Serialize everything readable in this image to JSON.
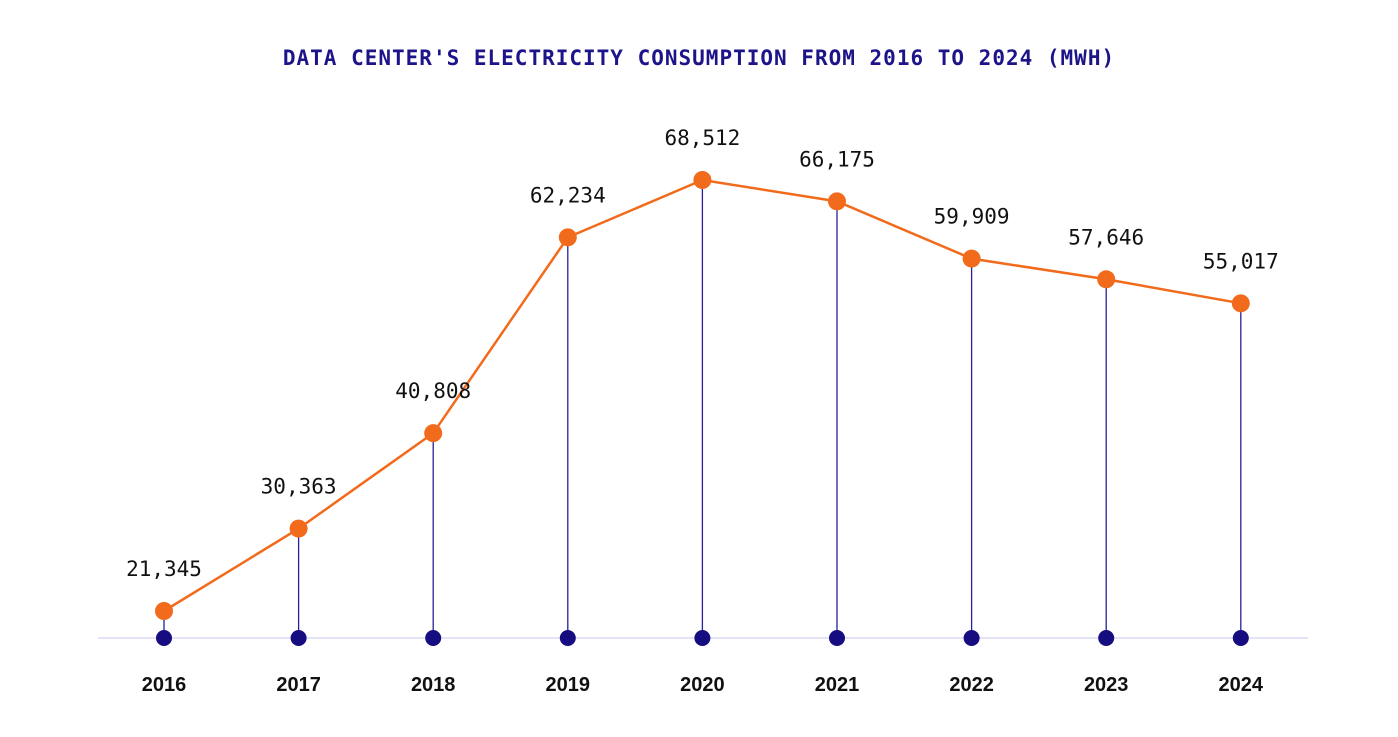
{
  "chart_data": {
    "type": "line",
    "title": "DATA CENTER'S ELECTRICITY CONSUMPTION FROM 2016 TO 2024 (MWH)",
    "xlabel": "",
    "ylabel": "",
    "categories": [
      "2016",
      "2017",
      "2018",
      "2019",
      "2020",
      "2021",
      "2022",
      "2023",
      "2024"
    ],
    "values": [
      21345,
      30363,
      40808,
      62234,
      68512,
      66175,
      59909,
      57646,
      55017
    ],
    "value_labels": [
      "21,345",
      "30,363",
      "40,808",
      "62,234",
      "68,512",
      "66,175",
      "59,909",
      "57,646",
      "55,017"
    ],
    "grid": false,
    "legend": "none"
  },
  "colors": {
    "title": "#1c1488",
    "line": "#f26a1b",
    "marker": "#f26a1b",
    "stem": "#2a1f9c",
    "base_dot": "#160d80",
    "baseline": "#d8daf3"
  }
}
